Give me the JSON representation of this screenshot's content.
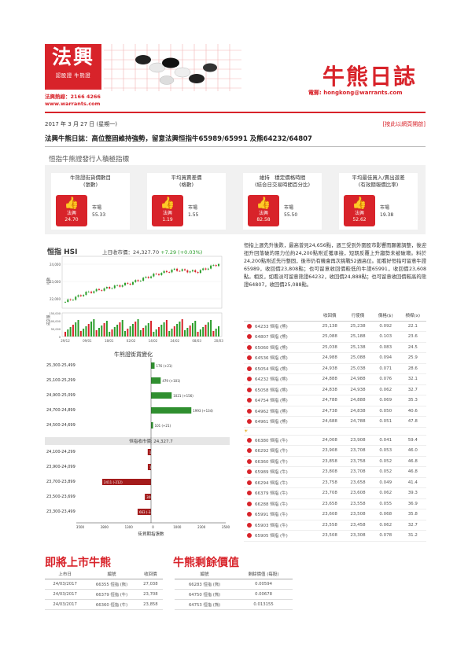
{
  "header": {
    "logo_main": "法興",
    "logo_sub": "認股證 牛熊證",
    "hotline": "法興熱線：2166 4266",
    "website": "www.warrants.com",
    "brand_title": "牛熊日誌",
    "email": "電郵: hongkong@warrants.com"
  },
  "date": "2017 年 3 月 27 日 (星期一)",
  "online_link": "[按此以網頁開啟]",
  "headline": "法興牛熊日誌：高位整固維持強勢，留意法興恒指牛65989/65991 及熊64232/64807",
  "indicators": {
    "title": "恒指牛熊證發行人積極指標",
    "cards": [
      {
        "title": "牛熊證街貨價數目",
        "subtitle": "(張數)",
        "label": "法興",
        "value": "24.70",
        "market_label": "市場",
        "market_value": "55.33"
      },
      {
        "title": "平均買賣差價",
        "subtitle": "(格數)",
        "label": "法興",
        "value": "1.19",
        "market_label": "市場",
        "market_value": "1.55"
      },
      {
        "title": "維持　穩定價格時間",
        "subtitle": "(結合日交易時間百分比)",
        "label": "法興",
        "value": "82.58",
        "market_label": "市場",
        "market_value": "55.50"
      },
      {
        "title": "平均最佳買入/賣出遊差",
        "subtitle": "(有效期報價比率)",
        "label": "法興",
        "value": "52.62",
        "market_label": "市場",
        "market_value": "19.38"
      }
    ]
  },
  "hsi": {
    "name": "恒指 HSI",
    "close_label": "上日收市價：",
    "close_value": "24,327.70",
    "change": "+7.29 (+0.03%)",
    "y_label_price": "指數",
    "y_label_vol": "成交量",
    "y_ticks": [
      "24,000",
      "23,000",
      "22,000"
    ],
    "vol_ticks": [
      "150,000",
      "100,000",
      "50,000",
      "0"
    ],
    "x_ticks": [
      "29/12",
      "09/01",
      "18/01",
      "02/02",
      "14/02",
      "24/02",
      "08/03",
      "20/03"
    ]
  },
  "distribution": {
    "title": "牛熊證街貨變化",
    "center_label": "恒指收市價: 24,327.7",
    "x_axis_title": "街貨期指張數",
    "x_ticks": [
      "3500",
      "2800",
      "1300",
      "0",
      "1000",
      "2300",
      "3500"
    ]
  },
  "chart_data": {
    "type": "bar",
    "title": "牛熊證街貨變化",
    "xlabel": "街貨期指張數",
    "ylabel": "",
    "bear_categories": [
      "25,300-25,499",
      "25,100-25,299",
      "24,900-25,099",
      "24,700-24,899",
      "24,500-24,699"
    ],
    "bear_values": [
      176,
      479,
      1021,
      1993,
      101
    ],
    "bear_labels": [
      "176 (+21)",
      "479 (+101)",
      "1021 (+156)",
      "1993 (+134)",
      "101 (+21)"
    ],
    "bull_categories": [
      "24,100-24,299",
      "23,900-24,099",
      "23,700-23,899",
      "23,500-23,699",
      "23,300-23,499"
    ],
    "bull_values": [
      163,
      158,
      2411,
      306,
      663
    ],
    "bull_labels": [
      "163 (+163)",
      "158 (+158)",
      "2411 (-212)",
      "306 (-156)",
      "663 (-34)"
    ],
    "hsi_series": {
      "x": [
        "29/12",
        "09/01",
        "18/01",
        "02/02",
        "14/02",
        "24/02",
        "08/03",
        "20/03"
      ],
      "values": [
        21900,
        22500,
        22800,
        23100,
        23600,
        23950,
        23800,
        24330
      ]
    },
    "xlim": [
      -3500,
      3500
    ]
  },
  "commentary": "恒指上週先升後跌，最高曾見24,656點，週三受到外圍股市影響而顯著調整，後迎扭升回落破的阻力位約24,200點附近獲承接，短期反覆上升趨勢未被破壞。料於24,200點附近先行整固，後市仍有機會再次挑戰52週高位。如看好恒指可留意牛證65989，收回價23,808點；也可留意收回價較低的牛證65991，收回價23,608點。相反，如看淡可留意熊證64232，收回價24,888點；也可留意收回價較高的熊證64807，收回價25,088點。",
  "table": {
    "headers": [
      "",
      "",
      "收回價",
      "行使價",
      "價格($)",
      "槓桿(x)"
    ],
    "bears": [
      [
        "64233 恒指 (熊)",
        "25,138",
        "25,238",
        "0.092",
        "22.1"
      ],
      [
        "64807 恒指 (熊)",
        "25,088",
        "25,188",
        "0.103",
        "23.6"
      ],
      [
        "65060 恒指 (熊)",
        "25,038",
        "25,138",
        "0.083",
        "24.5"
      ],
      [
        "64536 恒指 (熊)",
        "24,988",
        "25,088",
        "0.094",
        "25.9"
      ],
      [
        "65054 恒指 (熊)",
        "24,938",
        "25,038",
        "0.071",
        "28.6"
      ],
      [
        "64232 恒指 (熊)",
        "24,888",
        "24,988",
        "0.076",
        "32.1"
      ],
      [
        "65058 恒指 (熊)",
        "24,838",
        "24,938",
        "0.062",
        "32.7"
      ],
      [
        "64754 恒指 (熊)",
        "24,788",
        "24,888",
        "0.069",
        "35.3"
      ],
      [
        "64962 恒指 (熊)",
        "24,738",
        "24,838",
        "0.050",
        "40.6"
      ],
      [
        "64961 恒指 (熊)",
        "24,688",
        "24,788",
        "0.051",
        "47.8"
      ]
    ],
    "bulls": [
      [
        "66380 恒指 (牛)",
        "24,008",
        "23,908",
        "0.041",
        "59.4"
      ],
      [
        "66292 恒指 (牛)",
        "23,908",
        "23,708",
        "0.053",
        "46.0"
      ],
      [
        "66360 恒指 (牛)",
        "23,858",
        "23,758",
        "0.052",
        "46.8"
      ],
      [
        "65989 恒指 (牛)",
        "23,808",
        "23,708",
        "0.052",
        "46.8"
      ],
      [
        "66294 恒指 (牛)",
        "23,758",
        "23,658",
        "0.049",
        "41.4"
      ],
      [
        "66379 恒指 (牛)",
        "23,708",
        "23,608",
        "0.062",
        "39.3"
      ],
      [
        "66288 恒指 (牛)",
        "23,658",
        "23,558",
        "0.055",
        "36.9"
      ],
      [
        "65991 恒指 (牛)",
        "23,608",
        "23,508",
        "0.068",
        "35.8"
      ],
      [
        "65903 恒指 (牛)",
        "23,558",
        "23,458",
        "0.062",
        "32.7"
      ],
      [
        "65905 恒指 (牛)",
        "23,508",
        "23,308",
        "0.078",
        "31.2"
      ]
    ]
  },
  "upcoming": {
    "title": "即將上市牛熊",
    "headers": [
      "上市日",
      "編號",
      "收回價"
    ],
    "rows": [
      [
        "24/03/2017",
        "66355 恒指 (熊)",
        "27,038"
      ],
      [
        "24/03/2017",
        "66379 恒指 (牛)",
        "23,708"
      ],
      [
        "24/03/2017",
        "66360 恒指 (牛)",
        "23,858"
      ]
    ]
  },
  "residual": {
    "title": "牛熊剩餘價值",
    "headers": [
      "編號",
      "剩餘價值 (每股)"
    ],
    "rows": [
      [
        "66283 恒指 (熊)",
        "0.00594"
      ],
      [
        "64750 恒指 (熊)",
        "0.00678"
      ],
      [
        "64753 恒指 (熊)",
        "0.013155"
      ]
    ]
  },
  "colors": {
    "brand_red": "#d8232a",
    "bear_green": "#2f8f2f",
    "bull_red": "#a41c1c"
  }
}
